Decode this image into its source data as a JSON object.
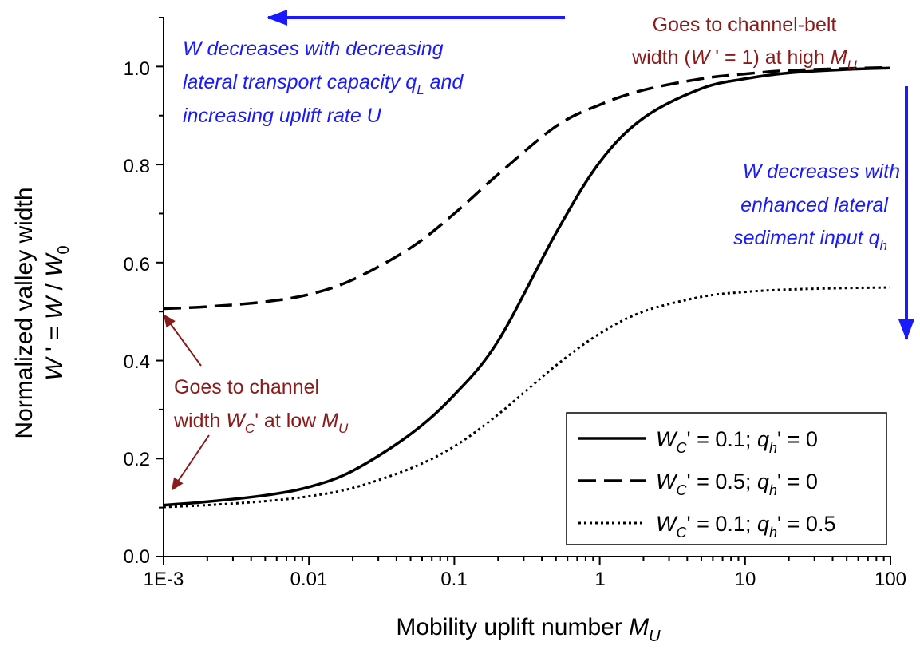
{
  "chart_data": {
    "type": "line",
    "xscale": "log",
    "xlim": [
      0.001,
      100
    ],
    "ylim": [
      0,
      1.1
    ],
    "x_tick_labels": [
      "1E-3",
      "0.01",
      "0.1",
      "1",
      "10",
      "100"
    ],
    "y_tick_labels": [
      "0.0",
      "0.2",
      "0.4",
      "0.6",
      "0.8",
      "1.0"
    ],
    "xlabel": {
      "main": "Mobility uplift number ",
      "var": "M",
      "sub": "U"
    },
    "ylabel": {
      "line1": "Normalized valley width",
      "line2": {
        "v1": "W",
        "prime": " ' = ",
        "v2": "W",
        "slash": " / ",
        "v3": "W",
        "sub": "0"
      }
    },
    "grid": false,
    "legend_position": "bottom-right",
    "x": [
      0.001,
      0.002,
      0.005,
      0.01,
      0.02,
      0.05,
      0.1,
      0.2,
      0.5,
      1,
      2,
      5,
      10,
      20,
      50,
      100
    ],
    "series": [
      {
        "name": {
          "v": "W",
          "sub": "C",
          "mid": "' = 0.1; ",
          "v2": "q",
          "sub2": "h",
          "tail": "' = 0"
        },
        "style": "solid",
        "values": [
          0.105,
          0.112,
          0.125,
          0.142,
          0.175,
          0.25,
          0.33,
          0.44,
          0.66,
          0.805,
          0.895,
          0.955,
          0.975,
          0.987,
          0.994,
          0.997
        ]
      },
      {
        "name": {
          "v": "W",
          "sub": "C",
          "mid": "' = 0.5; ",
          "v2": "q",
          "sub2": "h",
          "tail": "' = 0"
        },
        "style": "dashed",
        "values": [
          0.506,
          0.51,
          0.52,
          0.535,
          0.565,
          0.63,
          0.7,
          0.78,
          0.878,
          0.922,
          0.952,
          0.975,
          0.985,
          0.992,
          0.996,
          0.998
        ]
      },
      {
        "name": {
          "v": "W",
          "sub": "C",
          "mid": "' = 0.1; ",
          "v2": "q",
          "sub2": "h",
          "tail": "' = 0.5"
        },
        "style": "dotted",
        "values": [
          0.101,
          0.105,
          0.113,
          0.123,
          0.14,
          0.18,
          0.225,
          0.29,
          0.39,
          0.455,
          0.5,
          0.53,
          0.54,
          0.545,
          0.548,
          0.549
        ]
      }
    ],
    "colors": {
      "axis": "#000000",
      "line": "#000000",
      "annotation_blue": "#1a1aff",
      "annotation_red": "#8b1a1a"
    },
    "annotations": {
      "top_left": {
        "line1": "W decreases with decreasing",
        "line2a": "lateral transport capacity q",
        "line2sub": "L",
        "line2b": " and",
        "line3": "increasing uplift rate U"
      },
      "top_right": {
        "line1": "Goes to channel-belt",
        "line2a": "width (",
        "line2v": "W",
        "line2b": " ' = 1) at high ",
        "line2v2": "M",
        "line2sub": "U"
      },
      "right": {
        "line1": "W decreases with",
        "line2": "enhanced lateral",
        "line3a": "sediment input q",
        "line3sub": "h"
      },
      "bottom_left": {
        "line1": "Goes to channel",
        "line2a": "width ",
        "line2v": "W",
        "line2sub": "C",
        "line2b": "' at low ",
        "line2v2": "M",
        "line2sub2": "U"
      }
    }
  }
}
